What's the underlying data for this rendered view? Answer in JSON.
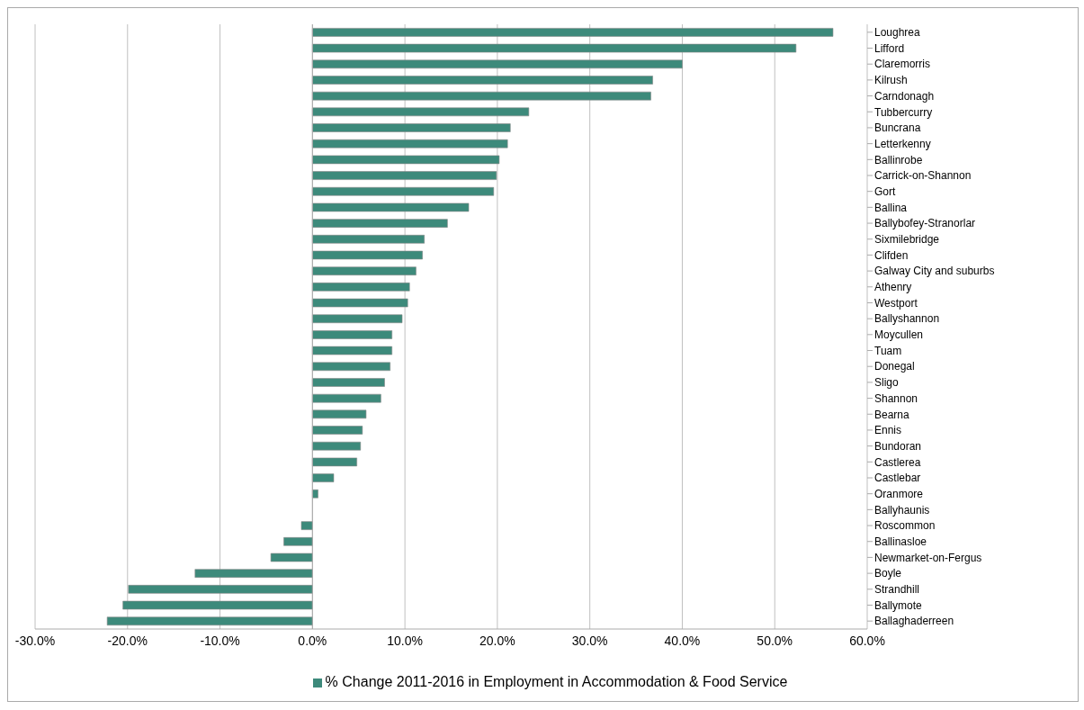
{
  "chart_data": {
    "type": "bar",
    "orientation": "horizontal",
    "categories": [
      "Loughrea",
      "Lifford",
      "Claremorris",
      "Kilrush",
      "Carndonagh",
      "Tubbercurry",
      "Buncrana",
      "Letterkenny",
      "Ballinrobe",
      "Carrick-on-Shannon",
      "Gort",
      "Ballina",
      "Ballybofey-Stranorlar",
      "Sixmilebridge",
      "Clifden",
      "Galway City and suburbs",
      "Athenry",
      "Westport",
      "Ballyshannon",
      "Moycullen",
      "Tuam",
      "Donegal",
      "Sligo",
      "Shannon",
      "Bearna",
      "Ennis",
      "Bundoran",
      "Castlerea",
      "Castlebar",
      "Oranmore",
      "Ballyhaunis",
      "Roscommon",
      "Ballinasloe",
      "Newmarket-on-Fergus",
      "Boyle",
      "Strandhill",
      "Ballymote",
      "Ballaghaderreen"
    ],
    "series": [
      {
        "name": "% Change 2011-2016 in Employment in Accommodation & Food Service",
        "color": "#3d8a7b",
        "values": [
          56.3,
          52.3,
          40.0,
          36.8,
          36.6,
          23.4,
          21.4,
          21.1,
          20.2,
          19.9,
          19.6,
          16.9,
          14.6,
          12.1,
          11.9,
          11.2,
          10.5,
          10.3,
          9.7,
          8.6,
          8.6,
          8.4,
          7.8,
          7.4,
          5.8,
          5.4,
          5.2,
          4.8,
          2.3,
          0.6,
          0,
          -1.2,
          -3.1,
          -4.5,
          -12.7,
          -19.9,
          -20.5,
          -22.2
        ]
      }
    ],
    "xlim": [
      -30,
      60
    ],
    "xticks": [
      {
        "value": -30,
        "label": "-30.0%"
      },
      {
        "value": -20,
        "label": "-20.0%"
      },
      {
        "value": -10,
        "label": "-10.0%"
      },
      {
        "value": 0,
        "label": "0.0%"
      },
      {
        "value": 10,
        "label": "10.0%"
      },
      {
        "value": 20,
        "label": "20.0%"
      },
      {
        "value": 30,
        "label": "30.0%"
      },
      {
        "value": 40,
        "label": "40.0%"
      },
      {
        "value": 50,
        "label": "50.0%"
      },
      {
        "value": 60,
        "label": "60.0%"
      }
    ],
    "grid": "x",
    "legend": "bottom"
  }
}
